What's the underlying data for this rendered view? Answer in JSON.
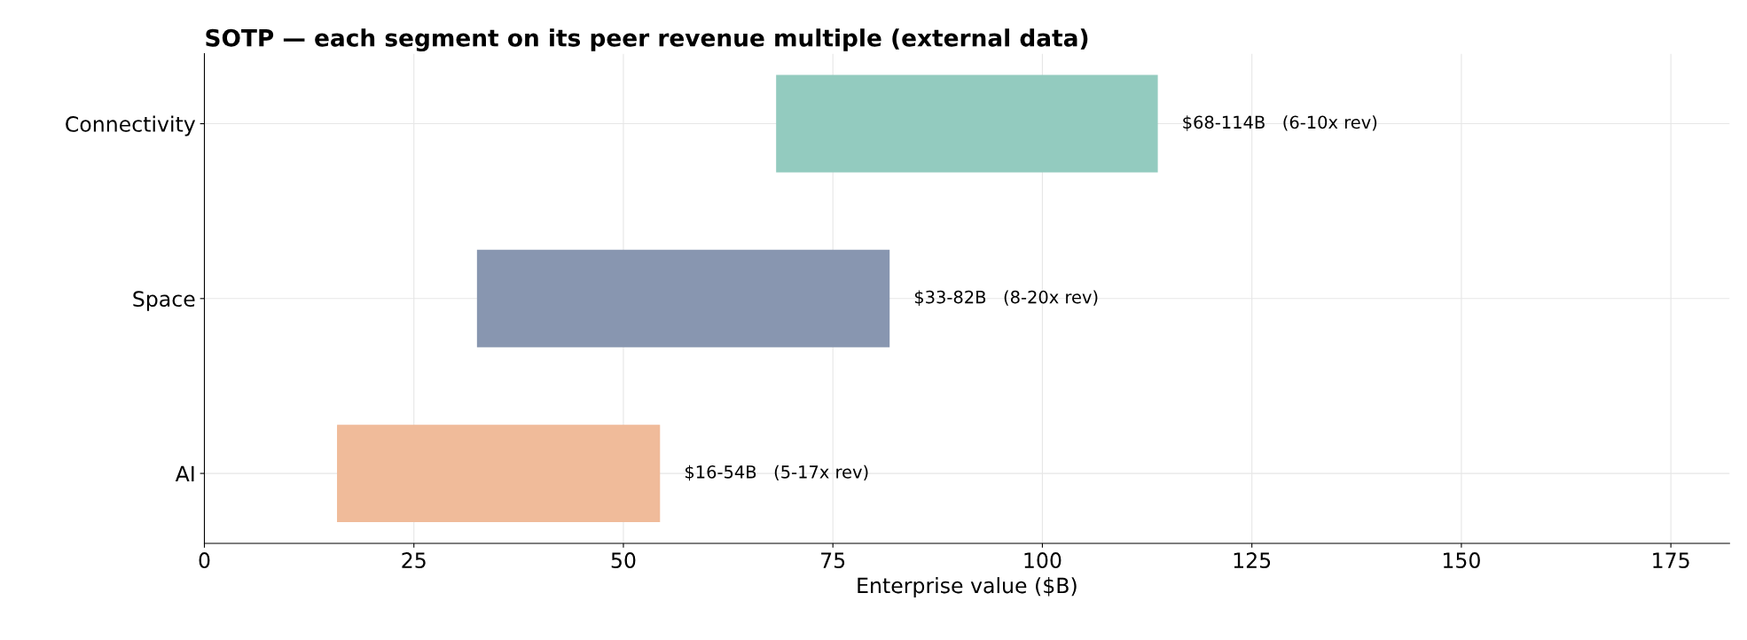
{
  "chart_data": {
    "type": "bar",
    "orientation": "horizontal",
    "title": "SOTP — each segment on its peer revenue multiple (external data)",
    "xlabel": "Enterprise value ($B)",
    "categories": [
      "Connectivity",
      "Space",
      "AI"
    ],
    "base": [
      68.3,
      32.6,
      15.9
    ],
    "values": [
      45.4,
      49.1,
      38.4
    ],
    "colors": [
      "#93cbbf",
      "#8896b0",
      "#f0bb9a"
    ],
    "value_labels": [
      "$68-114B   (6-10x rev)",
      "$33-82B   (8-20x rev)",
      "$16-54B   (5-17x rev)"
    ],
    "xlim": [
      0,
      182
    ],
    "xticks": [
      0,
      25,
      50,
      75,
      100,
      125,
      150,
      175
    ],
    "grid": true,
    "legend": false
  }
}
